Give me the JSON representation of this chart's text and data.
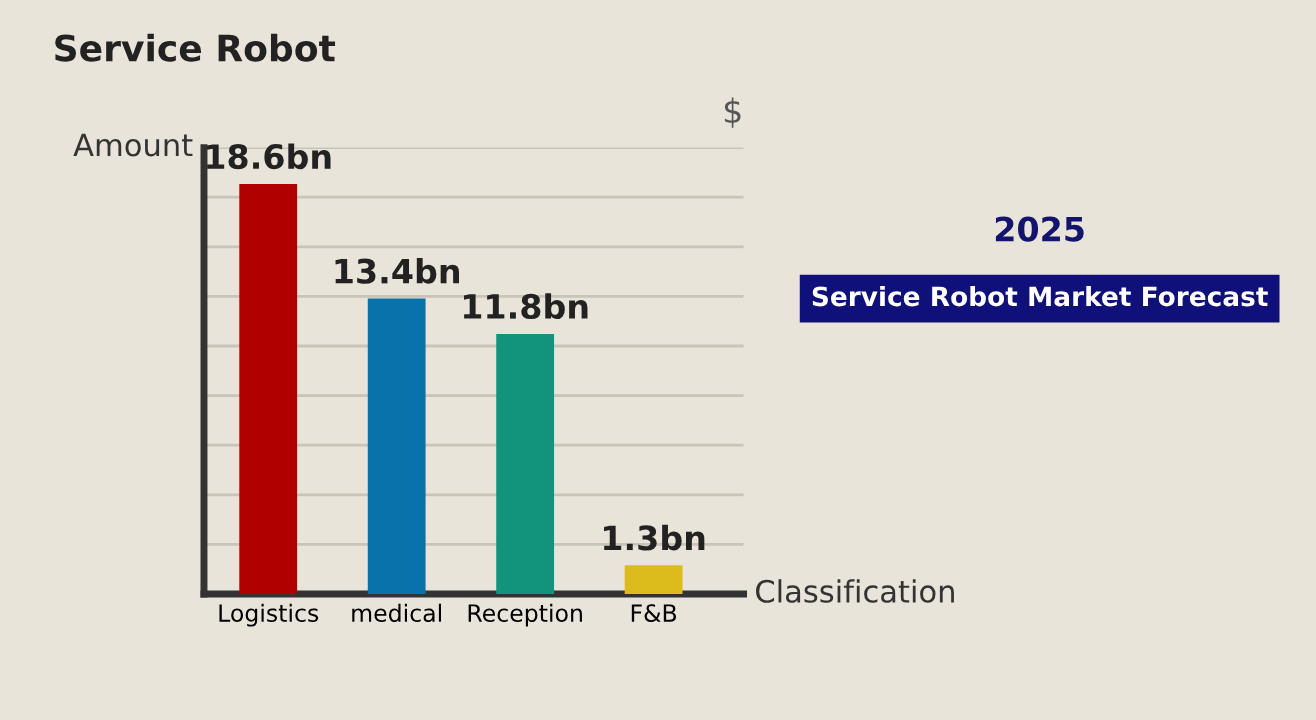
{
  "chart_data": {
    "type": "bar",
    "title": "Service Robot",
    "xlabel": "Classification",
    "ylabel": "Amount",
    "categories": [
      "Logistics",
      "medical",
      "Reception",
      "F&B"
    ],
    "values": [
      18.6,
      13.4,
      11.8,
      1.3
    ],
    "colors": [
      "#b00000",
      "#0a72aa",
      "#12937c",
      "#dcbc1c"
    ],
    "value_labels": [
      "18.6bn",
      "13.4bn",
      "11.8bn",
      "1.3bn"
    ],
    "ylim": [
      0,
      20.25
    ],
    "yticks": [
      {
        "value": 2.25,
        "label": null
      },
      {
        "value": 4.5,
        "label": null
      },
      {
        "value": 6.75,
        "label": null
      },
      {
        "value": 9,
        "label": null
      },
      {
        "value": 11.25,
        "label": null
      },
      {
        "value": 13.5,
        "label": null
      },
      {
        "value": 15.75,
        "label": null
      },
      {
        "value": 18,
        "label": null
      },
      {
        "value": 20.25,
        "label": null
      }
    ],
    "grid": "y",
    "annotations": [
      "$",
      "2025",
      "Service Robot Market Forecast"
    ]
  }
}
